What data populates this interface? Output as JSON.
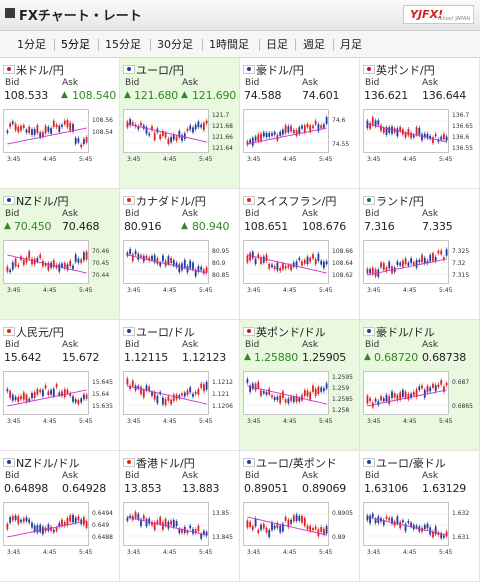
{
  "header": {
    "title": "FXチャート・レート",
    "logo": "YJFX!",
    "logo_sub": "Yahoo! JAPAN"
  },
  "tabs": [
    "1分足",
    "5分足",
    "15分足",
    "30分足",
    "1時間足",
    "日足",
    "週足",
    "月足"
  ],
  "active_tab": "5分足",
  "labels": {
    "bid": "Bid",
    "ask": "Ask"
  },
  "colors": {
    "up_candle": "#dd2222",
    "down_candle": "#1f3c9a",
    "ma_line": "#cc33cc",
    "highlight_bg": "#e9f8df",
    "up_value": "#2e8a22"
  },
  "rates": [
    {
      "pair": "米ドル/円",
      "flag": "US",
      "bid": "108.533",
      "ask": "108.540",
      "bid_up": false,
      "ask_up": true,
      "highlight": false,
      "y_ticks": [
        "108.56",
        "108.54",
        ""
      ],
      "x_ticks": [
        "3:45",
        "4:45",
        "5:45"
      ],
      "trend": "drop",
      "ma_up": true
    },
    {
      "pair": "ユーロ/円",
      "flag": "EU",
      "bid": "121.680",
      "ask": "121.690",
      "bid_up": true,
      "ask_up": true,
      "highlight": true,
      "y_ticks": [
        "121.7",
        "121.68",
        "121.66",
        "121.64"
      ],
      "x_ticks": [
        "3:45",
        "4:45",
        "5:45"
      ],
      "trend": "v",
      "ma_up": false
    },
    {
      "pair": "豪ドル/円",
      "flag": "AU",
      "bid": "74.588",
      "ask": "74.601",
      "bid_up": false,
      "ask_up": false,
      "highlight": false,
      "y_ticks": [
        "74.6",
        "",
        "74.55"
      ],
      "x_ticks": [
        "3:45",
        "4:45",
        "5:45"
      ],
      "trend": "up",
      "ma_up": true
    },
    {
      "pair": "英ポンド/円",
      "flag": "GB",
      "bid": "136.621",
      "ask": "136.644",
      "bid_up": false,
      "ask_up": false,
      "highlight": false,
      "y_ticks": [
        "136.7",
        "136.65",
        "136.6",
        "136.55"
      ],
      "x_ticks": [
        "3:45",
        "4:45",
        "5:45"
      ],
      "trend": "down",
      "ma_up": false
    },
    {
      "pair": "NZドル/円",
      "flag": "NZ",
      "bid": "70.450",
      "ask": "70.468",
      "bid_up": true,
      "ask_up": false,
      "highlight": true,
      "y_ticks": [
        "70.46",
        "70.45",
        "70.44"
      ],
      "x_ticks": [
        "3:45",
        "4:45",
        "5:45"
      ],
      "trend": "range",
      "ma_up": false
    },
    {
      "pair": "カナダドル/円",
      "flag": "CA",
      "bid": "80.916",
      "ask": "80.940",
      "bid_up": false,
      "ask_up": true,
      "highlight": false,
      "y_ticks": [
        "80.95",
        "80.9",
        "80.85"
      ],
      "x_ticks": [
        "3:45",
        "4:45",
        "5:45"
      ],
      "trend": "down",
      "ma_up": false
    },
    {
      "pair": "スイスフラン/円",
      "flag": "CH",
      "bid": "108.651",
      "ask": "108.676",
      "bid_up": false,
      "ask_up": false,
      "highlight": false,
      "y_ticks": [
        "108.66",
        "108.64",
        "108.62"
      ],
      "x_ticks": [
        "3:45",
        "4:45",
        "5:45"
      ],
      "trend": "range",
      "ma_up": false
    },
    {
      "pair": "ランド/円",
      "flag": "ZA",
      "bid": "7.316",
      "ask": "7.335",
      "bid_up": false,
      "ask_up": false,
      "highlight": false,
      "y_ticks": [
        "7.325",
        "7.32",
        "7.315"
      ],
      "x_ticks": [
        "3:45",
        "4:45",
        "5:45"
      ],
      "trend": "up",
      "ma_up": true
    },
    {
      "pair": "人民元/円",
      "flag": "CN",
      "bid": "15.642",
      "ask": "15.672",
      "bid_up": false,
      "ask_up": false,
      "highlight": false,
      "y_ticks": [
        "15.645",
        "15.64",
        "15.635"
      ],
      "x_ticks": [
        "3:45",
        "4:45",
        "5:45"
      ],
      "trend": "range",
      "ma_up": true
    },
    {
      "pair": "ユーロ/ドル",
      "flag": "EU",
      "bid": "1.12115",
      "ask": "1.12123",
      "bid_up": false,
      "ask_up": false,
      "highlight": false,
      "y_ticks": [
        "1.1212",
        "1.121",
        "1.1206"
      ],
      "x_ticks": [
        "3:45",
        "4:45",
        "5:45"
      ],
      "trend": "v",
      "ma_up": false
    },
    {
      "pair": "英ポンド/ドル",
      "flag": "GB",
      "bid": "1.25880",
      "ask": "1.25905",
      "bid_up": true,
      "ask_up": false,
      "highlight": true,
      "y_ticks": [
        "1.2595",
        "1.259",
        "1.2585",
        "1.258"
      ],
      "x_ticks": [
        "3:45",
        "4:45",
        "5:45"
      ],
      "trend": "v",
      "ma_up": false
    },
    {
      "pair": "豪ドル/ドル",
      "flag": "AU",
      "bid": "0.68720",
      "ask": "0.68738",
      "bid_up": true,
      "ask_up": false,
      "highlight": true,
      "y_ticks": [
        "0.687",
        "",
        "0.6865"
      ],
      "x_ticks": [
        "3:45",
        "4:45",
        "5:45"
      ],
      "trend": "up",
      "ma_up": true
    },
    {
      "pair": "NZドル/ドル",
      "flag": "NZ",
      "bid": "0.64898",
      "ask": "0.64928",
      "bid_up": false,
      "ask_up": false,
      "highlight": false,
      "y_ticks": [
        "0.6494",
        "0.649",
        "0.6488"
      ],
      "x_ticks": [
        "3:45",
        "4:45",
        "5:45"
      ],
      "trend": "range",
      "ma_up": true
    },
    {
      "pair": "香港ドル/円",
      "flag": "HK",
      "bid": "13.853",
      "ask": "13.883",
      "bid_up": false,
      "ask_up": false,
      "highlight": false,
      "y_ticks": [
        "13.85",
        "",
        "13.845"
      ],
      "x_ticks": [
        "3:45",
        "4:45",
        "5:45"
      ],
      "trend": "down",
      "ma_up": false
    },
    {
      "pair": "ユーロ/英ポンド",
      "flag": "EU",
      "bid": "0.89051",
      "ask": "0.89069",
      "bid_up": false,
      "ask_up": false,
      "highlight": false,
      "y_ticks": [
        "0.8905",
        "",
        "0.89"
      ],
      "x_ticks": [
        "3:45",
        "4:45",
        "5:45"
      ],
      "trend": "range",
      "ma_up": false
    },
    {
      "pair": "ユーロ/豪ドル",
      "flag": "EU",
      "bid": "1.63106",
      "ask": "1.63129",
      "bid_up": false,
      "ask_up": false,
      "highlight": false,
      "y_ticks": [
        "1.632",
        "",
        "1.631"
      ],
      "x_ticks": [
        "3:45",
        "4:45",
        "5:45"
      ],
      "trend": "down",
      "ma_up": false
    }
  ]
}
